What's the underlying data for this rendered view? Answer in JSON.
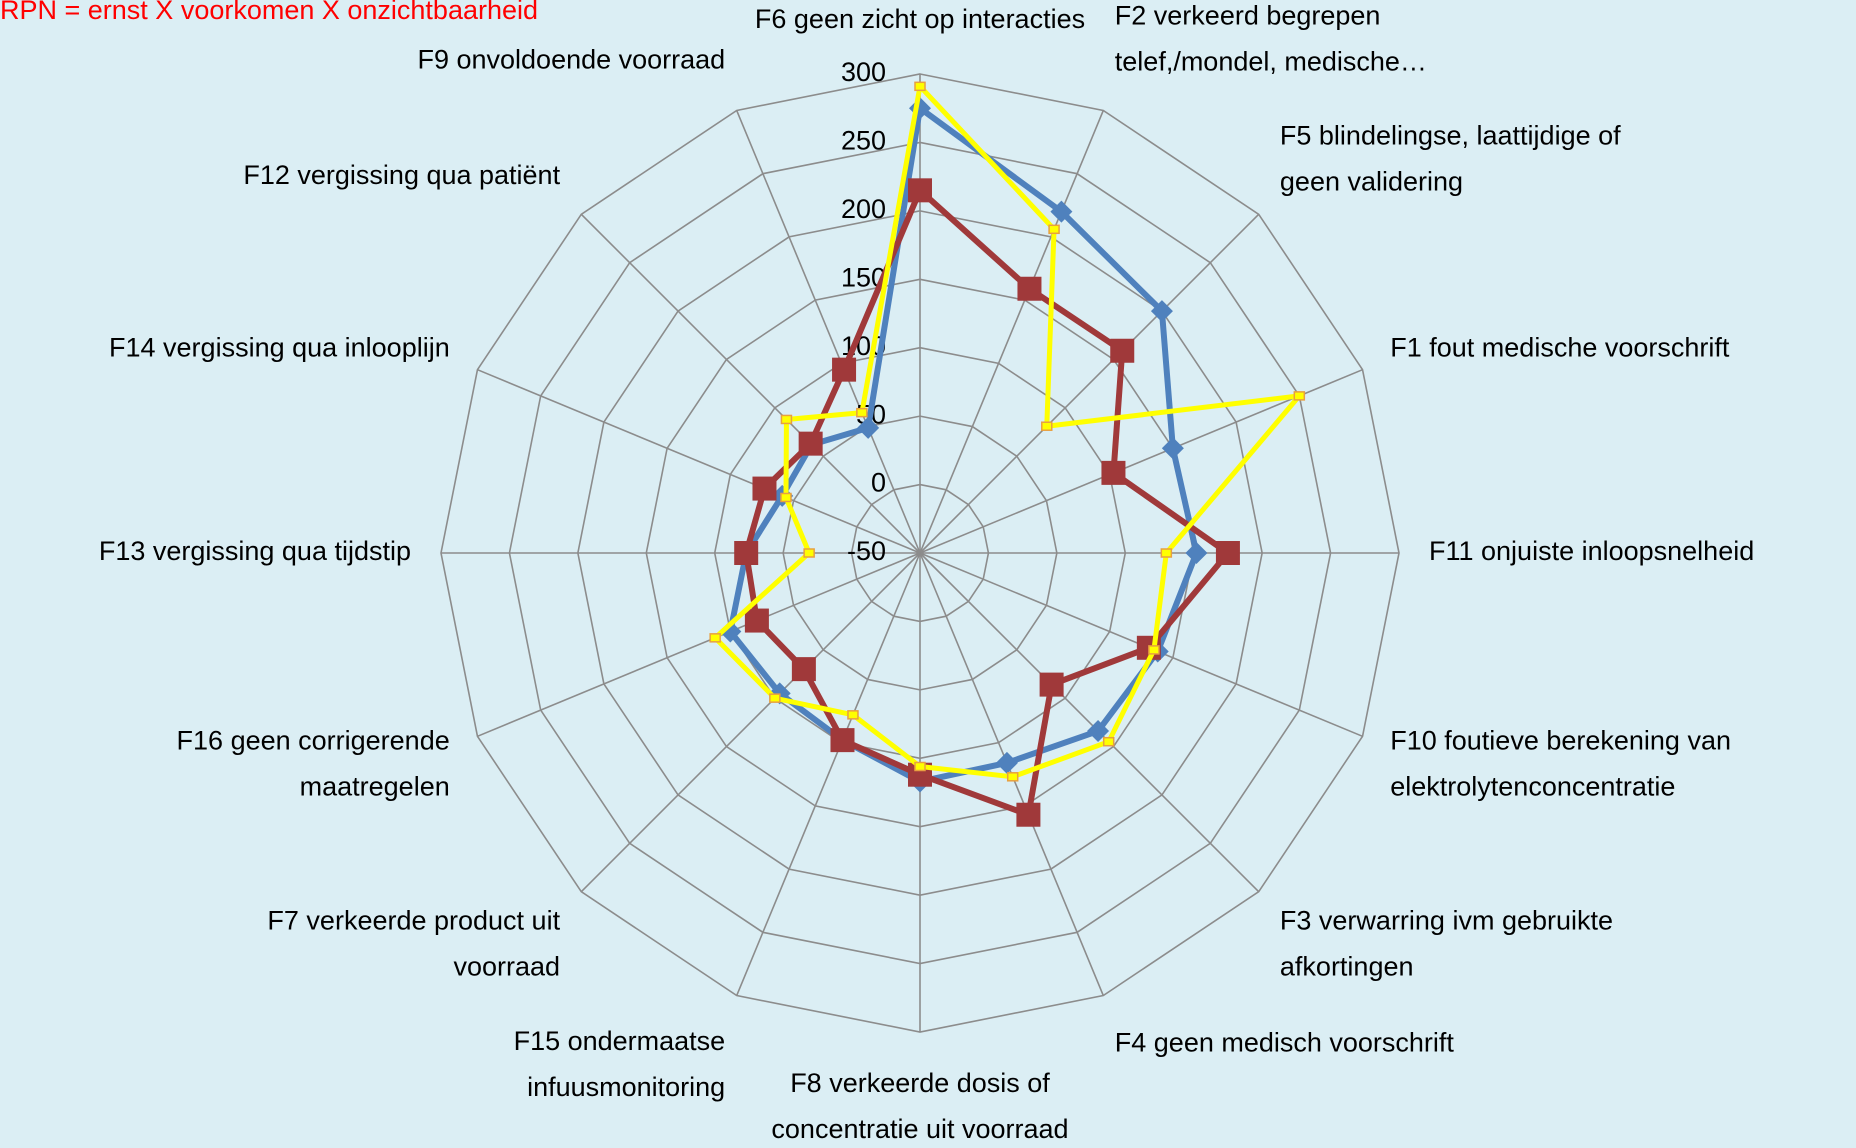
{
  "chart_data": {
    "type": "radar",
    "title": "RPN = ernst X voorkomen X onzichtbaarheid",
    "categories": [
      [
        "F6 geen zicht op interacties"
      ],
      [
        "F2  verkeerd begrepen",
        "telef,/mondel, medische…"
      ],
      [
        "F5 blindelingse, laattijdige of",
        "geen validering"
      ],
      [
        "F1 fout medische voorschrift"
      ],
      [
        "F11 onjuiste inloopsnelheid"
      ],
      [
        "F10  foutieve berekening van",
        "elektrolytenconcentratie"
      ],
      [
        "F3  verwarring ivm gebruikte",
        "afkortingen"
      ],
      [
        "F4 geen medisch voorschrift"
      ],
      [
        "F8  verkeerde dosis of",
        "concentratie uit voorraad"
      ],
      [
        "F15 ondermaatse",
        "infuusmonitoring"
      ],
      [
        "F7 verkeerde product uit",
        "voorraad"
      ],
      [
        "F16 geen corrigerende",
        "maatregelen"
      ],
      [
        "F13 vergissing qua tijdstip"
      ],
      [
        "F14 vergissing qua inlooplijn"
      ],
      [
        "F12 vergissing qua patiënt"
      ],
      [
        "F9 onvoldoende voorraad"
      ]
    ],
    "series": [
      {
        "color": "#4f81bd",
        "marker": "diamond",
        "values": [
          275,
          220,
          200,
          150,
          152,
          138,
          134,
          116,
          117,
          98,
          95,
          100,
          77,
          59,
          62,
          49
        ]
      },
      {
        "color": "#a0393a",
        "marker": "square",
        "values": [
          215,
          159,
          159,
          103,
          175,
          131,
          86,
          157,
          112,
          98,
          70,
          79,
          77,
          73,
          63,
          95
        ]
      },
      {
        "color": "#ffff00",
        "marker": "square",
        "values": [
          291,
          206,
          81,
          250,
          130,
          135,
          145,
          127,
          106,
          78,
          100,
          112,
          31,
          56,
          88,
          61
        ]
      }
    ],
    "ylim": [
      -50,
      300
    ],
    "yticks": [
      -50,
      0,
      50,
      100,
      150,
      200,
      250,
      300
    ],
    "grid": true
  }
}
